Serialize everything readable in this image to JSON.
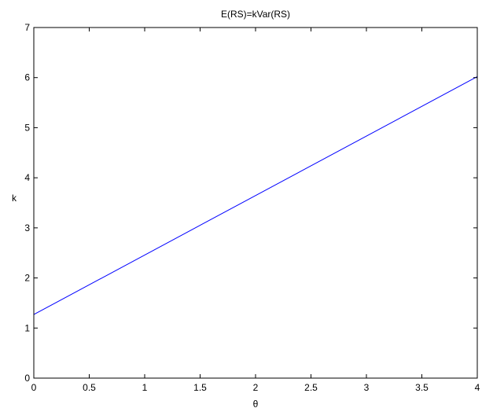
{
  "chart_data": {
    "type": "line",
    "title": "E(RS)=kVar(RS)",
    "xlabel": "θ",
    "ylabel": "k",
    "xlim": [
      0,
      4
    ],
    "ylim": [
      0,
      7
    ],
    "xticks": [
      0,
      0.5,
      1,
      1.5,
      2,
      2.5,
      3,
      3.5,
      4
    ],
    "xtick_labels": [
      "0",
      "0.5",
      "1",
      "1.5",
      "2",
      "2.5",
      "3",
      "3.5",
      "4"
    ],
    "yticks": [
      0,
      1,
      2,
      3,
      4,
      5,
      6,
      7
    ],
    "ytick_labels": [
      "0",
      "1",
      "2",
      "3",
      "4",
      "5",
      "6",
      "7"
    ],
    "grid": false,
    "series": [
      {
        "color": "#0000ff",
        "x": [
          0,
          0,
          4
        ],
        "y": [
          0,
          1.27,
          6.02
        ]
      }
    ]
  }
}
